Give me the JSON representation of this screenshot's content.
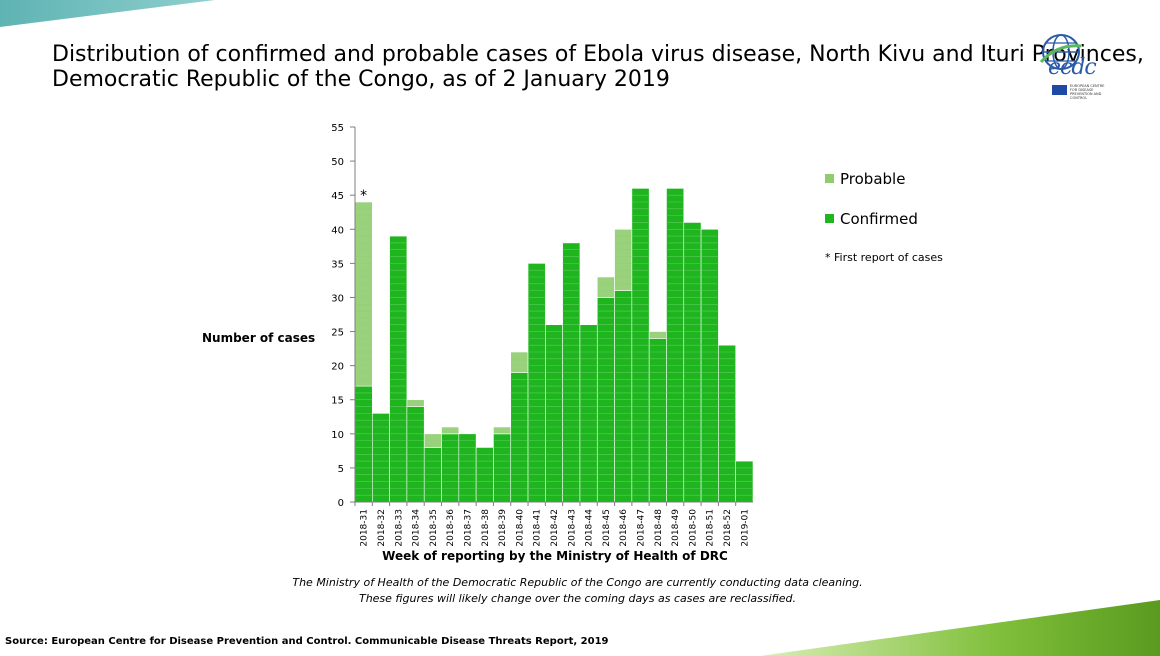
{
  "title": {
    "line1": "Distribution of confirmed and probable cases of Ebola virus disease, North Kivu and Ituri Provinces,",
    "line2": "Democratic Republic of the Congo, as of 2 January 2019"
  },
  "logo": {
    "text": "ecdc",
    "subtext": "EUROPEAN CENTRE FOR DISEASE PREVENTION AND CONTROL"
  },
  "legend": {
    "probable": "Probable",
    "confirmed": "Confirmed",
    "note": "* First report of cases"
  },
  "colors": {
    "confirmed": "#1fb51f",
    "probable": "#8fcc6e",
    "axis": "#7f7f7f"
  },
  "chart_data": {
    "type": "bar",
    "stacked": true,
    "xlabel": "Week of reporting by the Ministry of Health of DRC",
    "ylabel": "Number of cases",
    "ylim": [
      0,
      55
    ],
    "yticks": [
      0,
      5,
      10,
      15,
      20,
      25,
      30,
      35,
      40,
      45,
      50,
      55
    ],
    "categories": [
      "2018-31",
      "2018-32",
      "2018-33",
      "2018-34",
      "2018-35",
      "2018-36",
      "2018-37",
      "2018-38",
      "2018-39",
      "2018-40",
      "2018-41",
      "2018-42",
      "2018-43",
      "2018-44",
      "2018-45",
      "2018-46",
      "2018-47",
      "2018-48",
      "2018-49",
      "2018-50",
      "2018-51",
      "2018-52",
      "2019-01"
    ],
    "series": [
      {
        "name": "Confirmed",
        "values": [
          17,
          13,
          39,
          14,
          8,
          10,
          10,
          8,
          10,
          19,
          35,
          26,
          38,
          26,
          30,
          31,
          46,
          24,
          46,
          41,
          40,
          23,
          6
        ]
      },
      {
        "name": "Probable",
        "values": [
          27,
          0,
          0,
          1,
          2,
          1,
          0,
          0,
          1,
          3,
          0,
          0,
          0,
          0,
          3,
          9,
          0,
          1,
          0,
          0,
          0,
          0,
          0
        ]
      }
    ],
    "annotations": [
      {
        "category": "2018-31",
        "text": "*"
      }
    ]
  },
  "note": {
    "line1": "The Ministry of Health of the Democratic Republic of the Congo are currently conducting data cleaning.",
    "line2": "These figures will likely change over the coming days as cases are reclassified."
  },
  "source": "Source: European Centre for Disease Prevention and Control. Communicable Disease Threats Report, 2019"
}
